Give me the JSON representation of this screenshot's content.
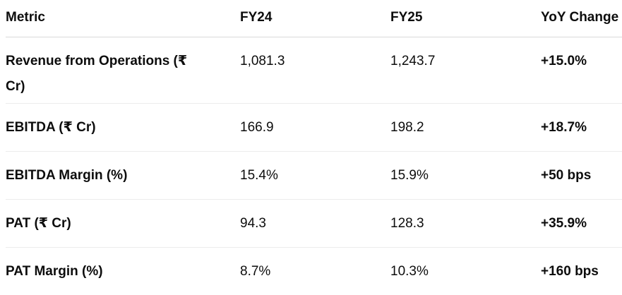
{
  "table": {
    "header": [
      "Metric",
      "FY24",
      "FY25",
      "YoY Change"
    ],
    "rows": [
      [
        "Revenue from Operations (₹ Cr)",
        "1,081.3",
        "1,243.7",
        "+15.0%"
      ],
      [
        "EBITDA (₹ Cr)",
        "166.9",
        "198.2",
        "+18.7%"
      ],
      [
        "EBITDA Margin (%)",
        "15.4%",
        "15.9%",
        "+50 bps"
      ],
      [
        "PAT (₹ Cr)",
        "94.3",
        "128.3",
        "+35.9%"
      ],
      [
        "PAT Margin (%)",
        "8.7%",
        "10.3%",
        "+160 bps"
      ]
    ]
  }
}
